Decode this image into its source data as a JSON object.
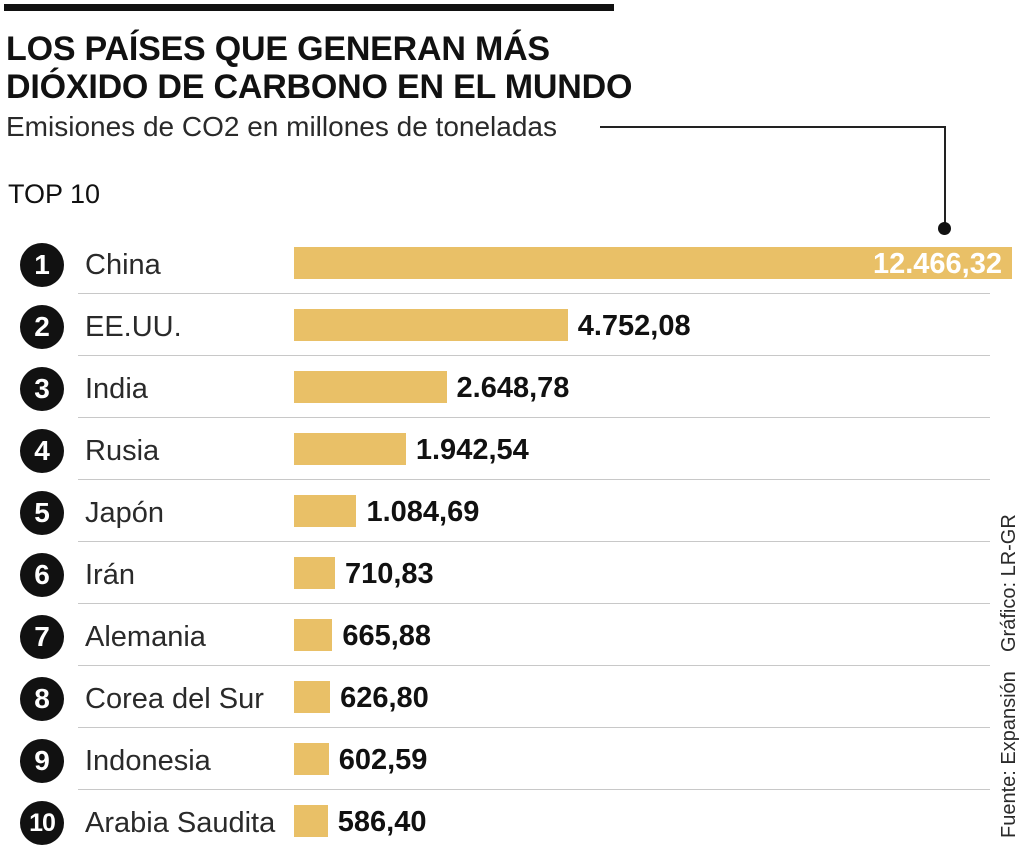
{
  "header": {
    "title_line1": "LOS PAÍSES QUE GENERAN MÁS",
    "title_line2": "DIÓXIDO DE CARBONO EN EL MUNDO",
    "subtitle": "Emisiones de CO2 en millones de toneladas",
    "top_label": "TOP 10"
  },
  "credits": {
    "graphic": "Gráfico: LR-GR",
    "source": "Fuente: Expansión"
  },
  "colors": {
    "bar": "#e9c067",
    "rank_circle": "#111111"
  },
  "chart_data": {
    "type": "bar",
    "orientation": "horizontal",
    "title": "LOS PAÍSES QUE GENERAN MÁS DIÓXIDO DE CARBONO EN EL MUNDO",
    "subtitle": "Emisiones de CO2 en millones de toneladas",
    "xlabel": "",
    "ylabel": "",
    "grid": false,
    "xlim": [
      0,
      12466.32
    ],
    "ranks": [
      "1",
      "2",
      "3",
      "4",
      "5",
      "6",
      "7",
      "8",
      "9",
      "10"
    ],
    "categories": [
      "China",
      "EE.UU.",
      "India",
      "Rusia",
      "Japón",
      "Irán",
      "Alemania",
      "Corea del Sur",
      "Indonesia",
      "Arabia Saudita"
    ],
    "values": [
      12466.32,
      4752.08,
      2648.78,
      1942.54,
      1084.69,
      710.83,
      665.88,
      626.8,
      602.59,
      586.4
    ],
    "labels": [
      "12.466,32",
      "4.752,08",
      "2.648,78",
      "1.942,54",
      "1.084,69",
      "710,83",
      "665,88",
      "626,80",
      "602,59",
      "586,40"
    ]
  }
}
